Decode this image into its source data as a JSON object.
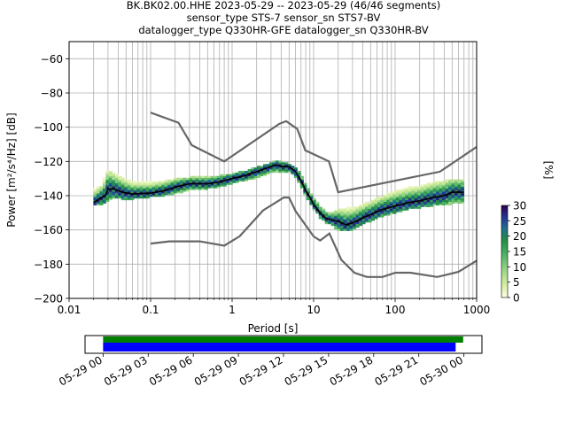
{
  "title_lines": [
    "BK.BK02.00.HHE   2023-05-29 -- 2023-05-29  (46/46 segments)",
    "sensor_type STS-7 sensor_sn STS7-BV",
    "datalogger_type Q330HR-GFE datalogger_sn Q330HR-BV"
  ],
  "colorbar": {
    "label": "[%]",
    "ticks": [
      "0",
      "5",
      "10",
      "15",
      "20",
      "25",
      "30"
    ],
    "range": [
      0,
      30
    ],
    "colors": [
      "#ffffe5",
      "#d9f0a3",
      "#addd8e",
      "#78c679",
      "#41ab5d",
      "#238b45",
      "#1d6f8e",
      "#253494",
      "#2d004b"
    ]
  },
  "chart_data": [
    {
      "type": "heatmap",
      "xlabel": "Period [s]",
      "ylabel": "Power [m²/s⁴/Hz] [dB]",
      "x_scale": "log",
      "xlim": [
        0.01,
        1000
      ],
      "ylim": [
        -200,
        -50
      ],
      "x_ticks": [
        {
          "value": 0.01,
          "label": "0.01"
        },
        {
          "value": 0.1,
          "label": "0.1"
        },
        {
          "value": 1,
          "label": "1"
        },
        {
          "value": 10,
          "label": "10"
        },
        {
          "value": 100,
          "label": "100"
        },
        {
          "value": 1000,
          "label": "1000"
        }
      ],
      "y_ticks": [
        {
          "value": -60,
          "label": "−60"
        },
        {
          "value": -80,
          "label": "−80"
        },
        {
          "value": -100,
          "label": "−100"
        },
        {
          "value": -120,
          "label": "−120"
        },
        {
          "value": -140,
          "label": "−140"
        },
        {
          "value": -160,
          "label": "−160"
        },
        {
          "value": -180,
          "label": "−180"
        },
        {
          "value": -200,
          "label": "−200"
        }
      ],
      "grid": true,
      "noise_models": {
        "high": {
          "x": [
            0.1,
            0.22,
            0.32,
            0.8,
            3.8,
            4.6,
            6.3,
            7.9,
            15.4,
            20,
            354.8,
            1000
          ],
          "y": [
            -91.5,
            -97.4,
            -110.5,
            -120,
            -98,
            -96.5,
            -101,
            -113.5,
            -120,
            -138,
            -126,
            -111.5
          ]
        },
        "low": {
          "x": [
            0.1,
            0.17,
            0.4,
            0.8,
            1.24,
            2.4,
            4.3,
            5.0,
            6.0,
            10.0,
            12.0,
            15.6,
            21.9,
            31.6,
            45.0,
            70.0,
            101.0,
            154.0,
            328.0,
            600.0,
            1000.0
          ],
          "y": [
            -168,
            -166.7,
            -166.7,
            -169.2,
            -163.7,
            -148.6,
            -141.1,
            -141.1,
            -149.0,
            -163.8,
            -166.2,
            -162.1,
            -177.5,
            -185.0,
            -187.5,
            -187.5,
            -185.0,
            -185.0,
            -187.5,
            -184.5,
            -178.0
          ]
        }
      },
      "mode_curve": {
        "x": [
          0.02,
          0.025,
          0.028,
          0.03,
          0.035,
          0.045,
          0.06,
          0.1,
          0.15,
          0.2,
          0.3,
          0.5,
          0.7,
          1.0,
          1.5,
          2.0,
          3.0,
          3.5,
          4.0,
          5.0,
          6.0,
          7.0,
          8.0,
          9.0,
          10.0,
          12.0,
          14.0,
          16.0,
          20.0,
          25.0,
          30.0,
          40.0,
          50.0,
          70.0,
          100.0,
          150.0,
          200.0,
          300.0,
          400.0,
          500.0,
          700.0
        ],
        "y": [
          -144,
          -141,
          -140,
          -136,
          -136,
          -138,
          -139,
          -138.5,
          -137,
          -135,
          -133,
          -133,
          -132,
          -130,
          -128,
          -126,
          -123,
          -122,
          -123,
          -123,
          -126,
          -131,
          -137,
          -141,
          -145,
          -150,
          -153,
          -154,
          -155,
          -157,
          -156,
          -153,
          -151,
          -148,
          -146,
          -144,
          -143,
          -141,
          -140,
          -138,
          -138
        ]
      },
      "density_band": {
        "x": [
          0.02,
          0.025,
          0.03,
          0.035,
          0.045,
          0.06,
          0.1,
          0.15,
          0.2,
          0.3,
          0.5,
          0.7,
          1.0,
          1.5,
          2.0,
          3.0,
          3.5,
          4.0,
          5.0,
          6.0,
          7.0,
          8.0,
          9.0,
          10.0,
          12.0,
          14.0,
          16.0,
          20.0,
          25.0,
          30.0,
          40.0,
          50.0,
          70.0,
          100.0,
          150.0,
          200.0,
          300.0,
          400.0,
          500.0,
          700.0
        ],
        "upper": [
          -136,
          -134,
          -125,
          -126,
          -129,
          -132,
          -132,
          -131,
          -130,
          -129,
          -129,
          -128,
          -127,
          -125,
          -123,
          -121,
          -119,
          -120,
          -121,
          -123,
          -127,
          -133,
          -137,
          -141,
          -146,
          -149,
          -150,
          -148,
          -147,
          -147,
          -145,
          -143,
          -140,
          -137,
          -135,
          -134,
          -132,
          -131,
          -131,
          -130
        ],
        "lower": [
          -146,
          -145,
          -143,
          -141,
          -142,
          -142,
          -141,
          -140,
          -139,
          -137,
          -136,
          -135,
          -133,
          -131,
          -130,
          -127,
          -126,
          -126,
          -126,
          -129,
          -134,
          -140,
          -144,
          -148,
          -153,
          -156,
          -157,
          -160,
          -161,
          -160,
          -157,
          -155,
          -152,
          -150,
          -148,
          -147,
          -146,
          -145,
          -145,
          -144
        ]
      }
    },
    {
      "type": "bar",
      "title": "",
      "x_ticks": [
        "05-29 00",
        "05-29 03",
        "05-29 06",
        "05-29 09",
        "05-29 12",
        "05-29 15",
        "05-29 18",
        "05-29 21",
        "05-30 00"
      ],
      "x_range_hours": [
        -1.2,
        25.2
      ],
      "series": [
        {
          "color": "#008000",
          "start_hour": 0,
          "end_hour": 23.95
        },
        {
          "color": "#0000ff",
          "start_hour": 0,
          "end_hour": 23.45
        }
      ]
    }
  ]
}
